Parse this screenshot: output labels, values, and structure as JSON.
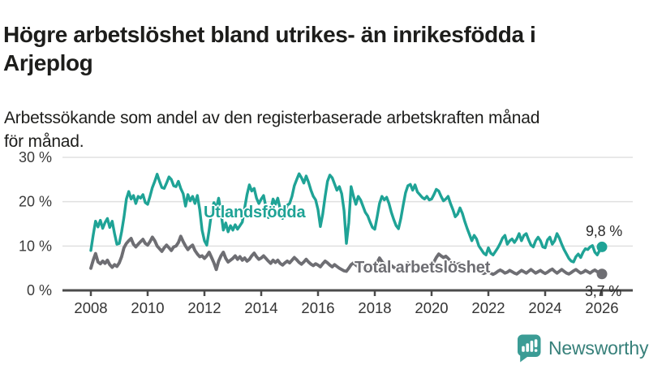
{
  "header": {
    "title": "Högre arbetslöshet bland utrikes- än inrikesfödda i Arjeplog",
    "title_lines": [
      "Högre arbetslöshet bland utrikes- än inrikesfödda i",
      "Arjeplog"
    ],
    "subtitle": "Arbetssökande som andel av den registerbaserade arbetskraften månad för månad.",
    "subtitle_lines": [
      "Arbetssökande som andel av den registerbaserade arbetskraften månad",
      "för månad."
    ]
  },
  "chart_data": {
    "type": "line",
    "title": "Högre arbetslöshet bland utrikes- än inrikesfödda i Arjeplog",
    "xlabel": "",
    "ylabel": "",
    "x_unit": "month",
    "x_start_year": 2008,
    "x_end": "2026-01",
    "grid": true,
    "legend_position": "inline-labels",
    "x_ticks": [
      2008,
      2010,
      2012,
      2014,
      2016,
      2018,
      2020,
      2022,
      2024,
      2026
    ],
    "x_tick_labels": [
      "2008",
      "2010",
      "2012",
      "2014",
      "2016",
      "2018",
      "2020",
      "2022",
      "2024",
      "2026"
    ],
    "y_ticks": [
      0,
      10,
      20,
      30
    ],
    "y_tick_labels": [
      "0 %",
      "10 %",
      "20 %",
      "30 %"
    ],
    "ylim": [
      0,
      32
    ],
    "series": [
      {
        "id": "utlandsfodda",
        "name": "Utlandsfödda",
        "color": "#1fa396",
        "end_label": "9,8 %",
        "end_value": 9.8,
        "values": [
          9.0,
          12.5,
          15.6,
          14.3,
          15.8,
          14.0,
          15.3,
          16.2,
          14.2,
          15.6,
          12.8,
          10.4,
          10.6,
          13.2,
          16.5,
          20.6,
          22.3,
          20.6,
          21.4,
          19.6,
          21.2,
          20.8,
          21.6,
          19.8,
          19.4,
          21.2,
          23.2,
          24.6,
          26.2,
          24.6,
          23.2,
          23.0,
          24.2,
          25.6,
          25.0,
          23.6,
          23.4,
          24.6,
          23.0,
          21.8,
          19.0,
          21.6,
          20.2,
          21.2,
          19.6,
          21.4,
          18.2,
          13.6,
          11.2,
          10.2,
          13.6,
          17.6,
          19.8,
          18.4,
          20.8,
          17.6,
          13.6,
          15.2,
          13.2,
          14.6,
          13.6,
          14.8,
          13.8,
          14.6,
          15.4,
          18.6,
          21.6,
          23.8,
          22.4,
          23.0,
          20.8,
          19.6,
          20.6,
          21.4,
          18.8,
          16.4,
          18.2,
          20.6,
          19.4,
          20.8,
          18.4,
          16.2,
          17.6,
          19.2,
          19.6,
          21.2,
          23.6,
          25.0,
          26.3,
          25.4,
          24.2,
          25.8,
          24.4,
          22.6,
          21.2,
          20.4,
          18.2,
          14.4,
          17.2,
          21.2,
          24.6,
          26.0,
          25.4,
          24.0,
          22.6,
          23.4,
          21.8,
          18.0,
          10.6,
          15.2,
          23.4,
          21.2,
          19.4,
          21.2,
          20.4,
          19.0,
          17.6,
          16.8,
          15.4,
          14.2,
          13.8,
          16.6,
          19.6,
          21.2,
          20.4,
          21.0,
          19.6,
          17.6,
          16.0,
          14.6,
          13.9,
          16.2,
          19.2,
          22.0,
          23.6,
          23.9,
          22.6,
          23.8,
          22.2,
          21.6,
          21.0,
          20.6,
          21.2,
          20.4,
          20.6,
          21.6,
          22.8,
          22.4,
          21.2,
          20.2,
          20.6,
          21.2,
          19.6,
          18.2,
          16.6,
          17.2,
          18.6,
          17.4,
          15.6,
          14.0,
          12.6,
          11.2,
          12.4,
          11.6,
          10.0,
          9.2,
          8.4,
          8.0,
          9.6,
          8.4,
          8.0,
          8.8,
          9.6,
          10.6,
          11.8,
          12.4,
          10.4,
          11.2,
          11.6,
          10.8,
          11.6,
          12.8,
          11.2,
          12.4,
          12.8,
          11.4,
          10.2,
          9.8,
          11.2,
          12.0,
          11.2,
          9.8,
          9.6,
          11.4,
          12.0,
          10.4,
          11.2,
          12.8,
          11.8,
          10.4,
          9.2,
          8.2,
          7.2,
          6.6,
          6.4,
          7.6,
          8.2,
          7.4,
          8.6,
          9.4,
          9.2,
          9.8,
          10.1,
          8.6,
          8.0,
          9.0,
          9.8
        ]
      },
      {
        "id": "total",
        "name": "Total arbetslöshet",
        "color": "#6e6e73",
        "end_label": "3,7 %",
        "end_value": 3.7,
        "values": [
          5.0,
          6.8,
          8.3,
          6.4,
          6.0,
          6.6,
          6.1,
          6.8,
          5.8,
          5.2,
          5.8,
          5.4,
          6.2,
          7.6,
          9.6,
          10.6,
          11.2,
          11.7,
          10.4,
          9.8,
          10.4,
          11.0,
          11.5,
          10.6,
          10.2,
          11.0,
          12.0,
          11.2,
          10.0,
          9.4,
          8.8,
          9.6,
          10.2,
          9.6,
          9.0,
          9.8,
          10.0,
          10.8,
          12.2,
          11.0,
          10.0,
          9.2,
          9.8,
          10.2,
          9.0,
          8.2,
          7.6,
          7.8,
          7.2,
          7.8,
          8.6,
          7.4,
          6.2,
          4.7,
          6.6,
          7.8,
          8.6,
          7.2,
          6.4,
          6.8,
          7.2,
          7.8,
          7.0,
          7.6,
          6.8,
          7.3,
          6.6,
          7.0,
          7.8,
          8.4,
          7.6,
          7.0,
          7.3,
          7.8,
          7.2,
          6.6,
          6.1,
          6.8,
          6.3,
          6.8,
          6.1,
          5.7,
          6.2,
          6.6,
          6.2,
          6.8,
          7.4,
          6.9,
          6.3,
          5.9,
          6.4,
          7.0,
          6.4,
          5.9,
          5.6,
          6.0,
          5.7,
          5.3,
          6.0,
          6.6,
          6.2,
          5.7,
          5.3,
          5.8,
          5.4,
          5.0,
          4.7,
          4.4,
          4.3,
          5.0,
          5.8,
          6.2,
          5.7,
          5.3,
          4.9,
          5.3,
          4.9,
          4.5,
          4.7,
          5.0,
          5.4,
          6.3,
          7.3,
          6.5,
          5.9,
          5.5,
          5.1,
          5.6,
          5.2,
          4.9,
          4.6,
          4.9,
          5.3,
          5.8,
          6.2,
          5.8,
          5.4,
          5.8,
          5.4,
          5.1,
          4.8,
          5.1,
          5.4,
          5.2,
          5.7,
          6.4,
          7.4,
          8.2,
          7.8,
          7.4,
          7.7,
          7.2,
          6.6,
          6.1,
          5.7,
          5.9,
          6.1,
          5.7,
          5.2,
          4.9,
          4.5,
          4.7,
          5.0,
          4.6,
          4.2,
          4.0,
          3.8,
          4.0,
          4.3,
          3.9,
          3.6,
          3.9,
          4.3,
          4.6,
          4.3,
          3.9,
          4.1,
          4.5,
          4.2,
          3.9,
          3.7,
          4.1,
          4.5,
          4.2,
          3.9,
          4.3,
          4.7,
          4.3,
          3.9,
          4.2,
          4.5,
          4.1,
          3.8,
          4.1,
          4.5,
          4.8,
          4.3,
          3.9,
          4.3,
          4.7,
          4.3,
          3.9,
          3.7,
          4.0,
          4.4,
          4.7,
          4.3,
          3.9,
          4.1,
          4.5,
          4.2,
          3.9,
          4.3,
          4.6,
          4.2,
          3.9,
          3.7
        ]
      }
    ]
  },
  "footer": {
    "brand": "Newsworthy"
  },
  "colors": {
    "accent_teal": "#1fa396",
    "series_gray": "#6e6e73",
    "grid": "#e0e0e0",
    "axis": "#4b4b4b",
    "text": "#1d1d1b",
    "logo_teal": "#3b9c95"
  }
}
